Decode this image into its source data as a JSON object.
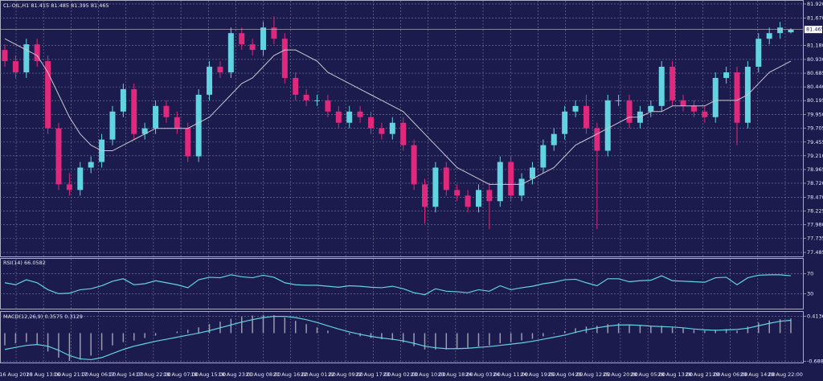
{
  "chart_data": [
    {
      "type": "candlestick",
      "symbol": "CL-OIL,H1",
      "x_labels": [
        "16 Aug 2023",
        "16 Aug 13:00",
        "16 Aug 21:00",
        "17 Aug 06:00",
        "17 Aug 14:00",
        "17 Aug 22:00",
        "18 Aug 07:00",
        "18 Aug 15:00",
        "18 Aug 23:00",
        "21 Aug 08:00",
        "21 Aug 16:00",
        "22 Aug 01:00",
        "22 Aug 09:00",
        "22 Aug 17:00",
        "23 Aug 02:00",
        "23 Aug 10:00",
        "23 Aug 18:00",
        "24 Aug 03:00",
        "24 Aug 11:00",
        "24 Aug 19:00",
        "25 Aug 04:00",
        "25 Aug 12:00",
        "25 Aug 20:00",
        "28 Aug 05:00",
        "28 Aug 13:00",
        "28 Aug 21:00",
        "29 Aug 06:00",
        "29 Aug 14:00",
        "29 Aug 22:00"
      ],
      "ohlc": [
        [
          81.1,
          81.2,
          80.8,
          80.9
        ],
        [
          80.9,
          81.0,
          80.6,
          80.7
        ],
        [
          80.7,
          81.3,
          80.6,
          81.2
        ],
        [
          81.2,
          81.3,
          80.8,
          80.9
        ],
        [
          80.9,
          81.0,
          79.6,
          79.7
        ],
        [
          79.7,
          79.8,
          78.6,
          78.7
        ],
        [
          78.7,
          78.9,
          78.5,
          78.6
        ],
        [
          78.6,
          79.1,
          78.5,
          79.0
        ],
        [
          79.0,
          79.2,
          78.9,
          79.1
        ],
        [
          79.1,
          79.6,
          79.0,
          79.5
        ],
        [
          79.5,
          80.1,
          79.4,
          80.0
        ],
        [
          80.0,
          80.5,
          79.9,
          80.4
        ],
        [
          80.4,
          80.5,
          79.5,
          79.6
        ],
        [
          79.6,
          79.8,
          79.5,
          79.7
        ],
        [
          79.7,
          80.2,
          79.6,
          80.1
        ],
        [
          80.1,
          80.2,
          79.8,
          79.9
        ],
        [
          79.9,
          80.0,
          79.6,
          79.7
        ],
        [
          79.7,
          79.8,
          79.1,
          79.2
        ],
        [
          79.2,
          80.4,
          79.1,
          80.3
        ],
        [
          80.3,
          80.9,
          80.2,
          80.8
        ],
        [
          80.8,
          80.9,
          80.6,
          80.7
        ],
        [
          80.7,
          81.5,
          80.6,
          81.4
        ],
        [
          81.4,
          81.5,
          81.1,
          81.2
        ],
        [
          81.2,
          81.3,
          81.0,
          81.1
        ],
        [
          81.1,
          81.6,
          81.0,
          81.5
        ],
        [
          81.5,
          81.7,
          81.2,
          81.3
        ],
        [
          81.3,
          81.4,
          80.5,
          80.6
        ],
        [
          80.6,
          80.7,
          80.2,
          80.3
        ],
        [
          80.3,
          80.4,
          80.1,
          80.2
        ],
        [
          80.2,
          80.3,
          80.1,
          80.2
        ],
        [
          80.2,
          80.3,
          79.9,
          80.0
        ],
        [
          80.0,
          80.1,
          79.7,
          79.8
        ],
        [
          79.8,
          80.1,
          79.7,
          80.0
        ],
        [
          80.0,
          80.1,
          79.8,
          79.9
        ],
        [
          79.9,
          80.0,
          79.6,
          79.7
        ],
        [
          79.7,
          79.8,
          79.5,
          79.6
        ],
        [
          79.6,
          79.9,
          79.5,
          79.8
        ],
        [
          79.8,
          79.9,
          79.3,
          79.4
        ],
        [
          79.4,
          79.5,
          78.6,
          78.7
        ],
        [
          78.7,
          78.8,
          78.0,
          78.3
        ],
        [
          78.3,
          79.1,
          78.2,
          79.0
        ],
        [
          79.0,
          79.1,
          78.5,
          78.6
        ],
        [
          78.6,
          78.7,
          78.4,
          78.5
        ],
        [
          78.5,
          78.6,
          78.2,
          78.3
        ],
        [
          78.3,
          78.7,
          78.2,
          78.6
        ],
        [
          78.6,
          78.7,
          77.9,
          78.4
        ],
        [
          78.4,
          79.2,
          78.3,
          79.1
        ],
        [
          79.1,
          79.2,
          78.4,
          78.5
        ],
        [
          78.5,
          78.9,
          78.4,
          78.8
        ],
        [
          78.8,
          79.1,
          78.7,
          79.0
        ],
        [
          79.0,
          79.5,
          78.9,
          79.4
        ],
        [
          79.4,
          79.7,
          79.3,
          79.6
        ],
        [
          79.6,
          80.1,
          79.5,
          80.0
        ],
        [
          80.0,
          80.2,
          79.9,
          80.1
        ],
        [
          80.1,
          80.3,
          79.6,
          79.7
        ],
        [
          79.7,
          79.8,
          77.9,
          79.3
        ],
        [
          79.3,
          80.3,
          79.2,
          80.2
        ],
        [
          80.2,
          80.3,
          80.1,
          80.2
        ],
        [
          80.2,
          80.3,
          79.7,
          79.8
        ],
        [
          79.8,
          80.1,
          79.7,
          80.0
        ],
        [
          80.0,
          80.2,
          79.9,
          80.1
        ],
        [
          80.1,
          80.9,
          80.0,
          80.8
        ],
        [
          80.8,
          80.9,
          80.1,
          80.2
        ],
        [
          80.2,
          80.3,
          80.0,
          80.1
        ],
        [
          80.1,
          80.2,
          79.9,
          80.0
        ],
        [
          80.0,
          80.1,
          79.8,
          79.9
        ],
        [
          79.9,
          80.7,
          79.8,
          80.6
        ],
        [
          80.6,
          80.8,
          80.5,
          80.7
        ],
        [
          80.7,
          80.8,
          79.4,
          79.8
        ],
        [
          79.8,
          80.9,
          79.7,
          80.8
        ],
        [
          80.8,
          81.4,
          80.7,
          81.3
        ],
        [
          81.3,
          81.5,
          81.2,
          81.4
        ],
        [
          81.4,
          81.6,
          81.3,
          81.5
        ],
        [
          81.415,
          81.485,
          81.395,
          81.465
        ]
      ],
      "ma": [
        81.3,
        81.2,
        81.1,
        81.0,
        80.7,
        80.3,
        79.9,
        79.6,
        79.4,
        79.3,
        79.3,
        79.4,
        79.5,
        79.6,
        79.7,
        79.7,
        79.7,
        79.7,
        79.8,
        79.9,
        80.1,
        80.3,
        80.5,
        80.6,
        80.8,
        81.0,
        81.1,
        81.1,
        81.0,
        80.9,
        80.7,
        80.6,
        80.5,
        80.4,
        80.3,
        80.2,
        80.1,
        80.0,
        79.8,
        79.6,
        79.4,
        79.2,
        79.0,
        78.9,
        78.8,
        78.7,
        78.7,
        78.7,
        78.7,
        78.8,
        78.9,
        79.0,
        79.2,
        79.4,
        79.5,
        79.6,
        79.7,
        79.8,
        79.9,
        79.9,
        80.0,
        80.0,
        80.1,
        80.1,
        80.1,
        80.1,
        80.2,
        80.2,
        80.2,
        80.3,
        80.5,
        80.7,
        80.8,
        80.9
      ],
      "up_color": "#62d3e0",
      "down_color": "#e0287c",
      "ma_color": "#c8c8d0",
      "ylim": [
        77.414,
        81.977
      ],
      "yticks": [
        {
          "value": 81.92,
          "label": "81.920"
        },
        {
          "value": 81.67,
          "label": "81.670"
        },
        {
          "value": 81.18,
          "label": "81.180"
        },
        {
          "value": 80.93,
          "label": "80.930"
        },
        {
          "value": 80.685,
          "label": "80.685"
        },
        {
          "value": 80.44,
          "label": "80.440"
        },
        {
          "value": 80.195,
          "label": "80.195"
        },
        {
          "value": 79.95,
          "label": "79.950"
        },
        {
          "value": 79.705,
          "label": "79.705"
        },
        {
          "value": 79.455,
          "label": "79.455"
        },
        {
          "value": 79.21,
          "label": "79.210"
        },
        {
          "value": 78.965,
          "label": "78.965"
        },
        {
          "value": 78.72,
          "label": "78.720"
        },
        {
          "value": 78.47,
          "label": "78.470"
        },
        {
          "value": 78.225,
          "label": "78.225"
        },
        {
          "value": 77.98,
          "label": "77.980"
        },
        {
          "value": 77.735,
          "label": "77.735"
        },
        {
          "value": 77.485,
          "label": "77.485"
        }
      ],
      "grid": true
    },
    {
      "type": "line",
      "title": "RSI(14)",
      "color": "#62d3e0",
      "values": [
        52,
        48,
        58,
        52,
        38,
        30,
        31,
        38,
        40,
        46,
        55,
        60,
        48,
        50,
        56,
        52,
        48,
        42,
        58,
        63,
        62,
        68,
        64,
        62,
        67,
        63,
        52,
        48,
        47,
        47,
        45,
        43,
        46,
        45,
        43,
        42,
        45,
        40,
        32,
        28,
        40,
        35,
        34,
        32,
        38,
        35,
        46,
        38,
        42,
        45,
        50,
        53,
        58,
        59,
        52,
        46,
        60,
        60,
        54,
        56,
        57,
        66,
        56,
        55,
        54,
        53,
        62,
        63,
        48,
        62,
        67,
        68,
        68,
        66.0582
      ],
      "ylim": [
        0,
        100
      ],
      "yticks": [
        30,
        70
      ],
      "grid": true
    },
    {
      "type": "macd",
      "title": "MACD(12,26,9)",
      "bar_color": "#9a9ab0",
      "signal_color": "#62d3e0",
      "macd": [
        -0.3,
        -0.25,
        -0.22,
        -0.28,
        -0.45,
        -0.6,
        -0.68,
        -0.65,
        -0.55,
        -0.42,
        -0.3,
        -0.22,
        -0.18,
        -0.12,
        -0.06,
        0.0,
        0.04,
        0.08,
        0.14,
        0.22,
        0.28,
        0.35,
        0.4,
        0.43,
        0.45,
        0.44,
        0.38,
        0.3,
        0.22,
        0.14,
        0.06,
        0.0,
        -0.04,
        -0.08,
        -0.12,
        -0.15,
        -0.17,
        -0.23,
        -0.32,
        -0.4,
        -0.4,
        -0.4,
        -0.38,
        -0.36,
        -0.33,
        -0.3,
        -0.25,
        -0.22,
        -0.18,
        -0.14,
        -0.08,
        -0.02,
        0.05,
        0.12,
        0.16,
        0.18,
        0.22,
        0.24,
        0.21,
        0.19,
        0.17,
        0.18,
        0.14,
        0.12,
        0.08,
        0.06,
        0.08,
        0.1,
        0.06,
        0.16,
        0.26,
        0.31,
        0.34,
        0.3575
      ],
      "signal": [
        -0.4,
        -0.35,
        -0.3,
        -0.28,
        -0.32,
        -0.42,
        -0.55,
        -0.63,
        -0.65,
        -0.6,
        -0.5,
        -0.4,
        -0.32,
        -0.26,
        -0.2,
        -0.15,
        -0.1,
        -0.05,
        0.0,
        0.06,
        0.13,
        0.2,
        0.27,
        0.33,
        0.38,
        0.41,
        0.41,
        0.38,
        0.33,
        0.26,
        0.18,
        0.1,
        0.03,
        -0.03,
        -0.08,
        -0.12,
        -0.15,
        -0.19,
        -0.25,
        -0.32,
        -0.36,
        -0.38,
        -0.38,
        -0.37,
        -0.35,
        -0.33,
        -0.3,
        -0.27,
        -0.24,
        -0.2,
        -0.15,
        -0.1,
        -0.05,
        0.02,
        0.08,
        0.13,
        0.17,
        0.2,
        0.2,
        0.19,
        0.17,
        0.16,
        0.15,
        0.13,
        0.1,
        0.08,
        0.07,
        0.08,
        0.09,
        0.12,
        0.18,
        0.24,
        0.29,
        0.3129
      ],
      "ylim": [
        -0.72,
        0.52
      ],
      "yticks": [
        0.4136,
        -0.688
      ],
      "grid": true
    }
  ]
}
